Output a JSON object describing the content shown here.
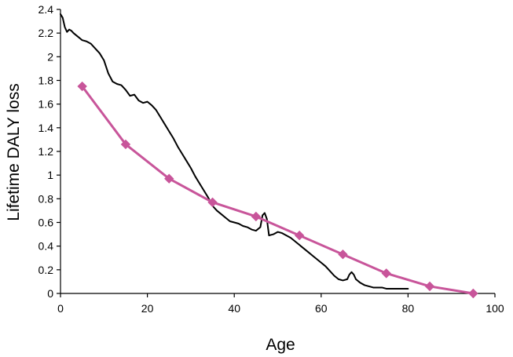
{
  "chart_data": {
    "type": "line",
    "xlabel": "Age",
    "ylabel": "Lifetime DALY loss",
    "xlim": [
      0,
      100
    ],
    "ylim": [
      0,
      2.4
    ],
    "grid": false,
    "legend": "none",
    "x_ticks": [
      "0",
      "20",
      "40",
      "60",
      "80",
      "100"
    ],
    "y_ticks": [
      "0",
      "0.2",
      "0.4",
      "0.6",
      "0.8",
      "1",
      "1.2",
      "1.4",
      "1.6",
      "1.8",
      "2",
      "2.2",
      "2.4"
    ],
    "x_tick_values": [
      0,
      20,
      40,
      60,
      80,
      100
    ],
    "y_tick_values": [
      0,
      0.2,
      0.4,
      0.6,
      0.8,
      1.0,
      1.2,
      1.4,
      1.6,
      1.8,
      2.0,
      2.2,
      2.4
    ],
    "series": [
      {
        "style": "line",
        "color": "#000000",
        "x": [
          0,
          0.5,
          1,
          1.5,
          2,
          2.5,
          3,
          4,
          5,
          6,
          7,
          8,
          9,
          10,
          11,
          12,
          13,
          14,
          15,
          16,
          17,
          18,
          19,
          20,
          21,
          22,
          23,
          24,
          25,
          26,
          27,
          28,
          29,
          30,
          31,
          32,
          33,
          34,
          35,
          36,
          37,
          38,
          39,
          40,
          41,
          42,
          43,
          44,
          45,
          46,
          46.5,
          47,
          47.5,
          48,
          49,
          50,
          51,
          52,
          53,
          54,
          55,
          56,
          57,
          58,
          59,
          60,
          61,
          62,
          63,
          64,
          65,
          66,
          66.5,
          67,
          67.5,
          68,
          69,
          70,
          71,
          72,
          73,
          74,
          75,
          76,
          77,
          78,
          79,
          80
        ],
        "y": [
          2.36,
          2.33,
          2.25,
          2.21,
          2.23,
          2.22,
          2.2,
          2.17,
          2.14,
          2.13,
          2.11,
          2.07,
          2.03,
          1.97,
          1.86,
          1.79,
          1.77,
          1.76,
          1.72,
          1.67,
          1.68,
          1.63,
          1.61,
          1.62,
          1.59,
          1.55,
          1.49,
          1.43,
          1.37,
          1.31,
          1.24,
          1.18,
          1.12,
          1.06,
          0.99,
          0.93,
          0.87,
          0.81,
          0.74,
          0.7,
          0.67,
          0.64,
          0.61,
          0.6,
          0.59,
          0.57,
          0.56,
          0.54,
          0.53,
          0.56,
          0.66,
          0.68,
          0.63,
          0.49,
          0.5,
          0.52,
          0.51,
          0.49,
          0.47,
          0.44,
          0.41,
          0.38,
          0.35,
          0.32,
          0.29,
          0.26,
          0.23,
          0.19,
          0.15,
          0.12,
          0.11,
          0.12,
          0.16,
          0.18,
          0.16,
          0.12,
          0.09,
          0.07,
          0.06,
          0.05,
          0.05,
          0.05,
          0.04,
          0.04,
          0.04,
          0.04,
          0.04,
          0.04
        ]
      },
      {
        "style": "line-markers",
        "color": "#c8559a",
        "marker": "diamond",
        "x": [
          5,
          15,
          25,
          35,
          45,
          55,
          65,
          75,
          85,
          95
        ],
        "y": [
          1.75,
          1.26,
          0.97,
          0.77,
          0.65,
          0.49,
          0.33,
          0.17,
          0.06,
          0.0
        ]
      }
    ]
  }
}
